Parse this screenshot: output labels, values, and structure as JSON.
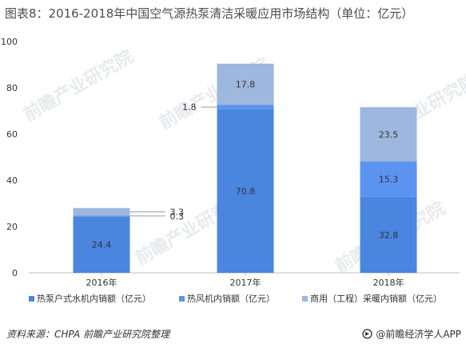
{
  "title": "图表8：2016-2018年中国空气源热泵清洁采暖应用市场结构（单位：亿元）",
  "chart_data": {
    "type": "bar",
    "stacked": true,
    "categories": [
      "2016年",
      "2017年",
      "2018年"
    ],
    "series": [
      {
        "name": "热泵户式水机内销额（亿元）",
        "values": [
          24.4,
          70.8,
          32.8
        ],
        "color": "#4a86e0"
      },
      {
        "name": "热风机内销额（亿元）",
        "values": [
          0.3,
          1.8,
          15.3
        ],
        "color": "#5b93f0"
      },
      {
        "name": "商用（工程）采暖内销额（亿元）",
        "values": [
          3.3,
          17.8,
          23.5
        ],
        "color": "#9db7de"
      }
    ],
    "ylim": [
      0,
      100
    ],
    "yticks": [
      0,
      20,
      40,
      60,
      80,
      100
    ],
    "data_labels": [
      [
        "24.4",
        "70.8",
        "32.8"
      ],
      [
        "0.3",
        "1.8",
        "15.3"
      ],
      [
        "3.3",
        "17.8",
        "23.5"
      ]
    ],
    "grid": false,
    "legend_position": "bottom"
  },
  "source": "资料来源：CHPA 前瞻产业研究院整理",
  "brand": "@前瞻经济学人APP",
  "watermark_text": "前瞻产业研究院"
}
